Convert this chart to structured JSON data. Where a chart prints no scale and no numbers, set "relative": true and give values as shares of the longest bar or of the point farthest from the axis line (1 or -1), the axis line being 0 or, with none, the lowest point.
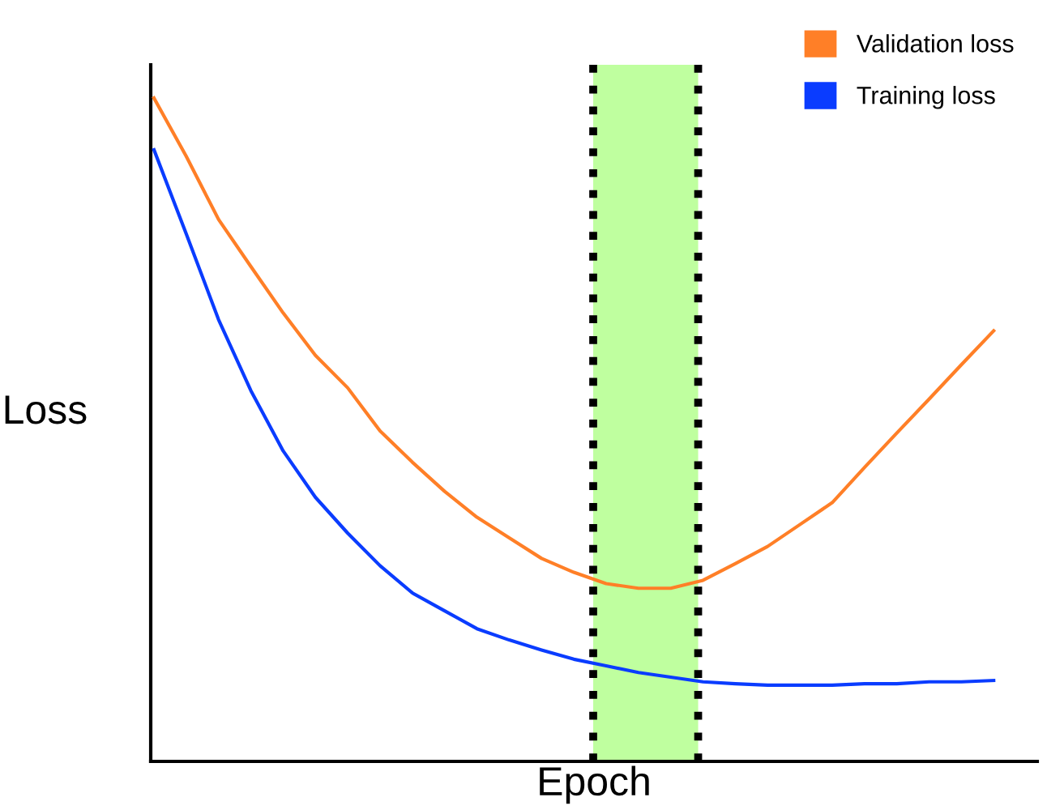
{
  "chart_data": {
    "type": "line",
    "xlabel": "Epoch",
    "ylabel": "Loss",
    "relative": true,
    "legend": "top right",
    "marker": "none",
    "line_style": "solid",
    "categories": [
      null,
      null,
      null,
      null,
      null,
      null,
      null,
      null,
      null,
      null,
      null,
      null,
      null,
      null,
      null,
      null,
      null,
      null,
      null,
      null,
      null,
      null,
      null,
      null,
      null,
      null,
      null
    ],
    "series": [
      {
        "name": "Validation loss",
        "color": "#ff7f27",
        "values": [
          1.0,
          0.912,
          0.817,
          0.746,
          0.676,
          0.612,
          0.563,
          0.498,
          0.451,
          0.407,
          0.368,
          0.337,
          0.306,
          0.285,
          0.268,
          0.261,
          0.261,
          0.273,
          0.298,
          0.324,
          0.357,
          0.39,
          0.443,
          0.495,
          0.546,
          0.598,
          0.649
        ]
      },
      {
        "name": "Training loss",
        "color": "#0a3cff",
        "values": [
          0.922,
          0.795,
          0.666,
          0.559,
          0.468,
          0.398,
          0.344,
          0.295,
          0.254,
          0.227,
          0.2,
          0.183,
          0.168,
          0.154,
          0.144,
          0.134,
          0.127,
          0.12,
          0.117,
          0.115,
          0.115,
          0.115,
          0.117,
          0.117,
          0.12,
          0.12,
          0.122
        ]
      }
    ]
  }
}
